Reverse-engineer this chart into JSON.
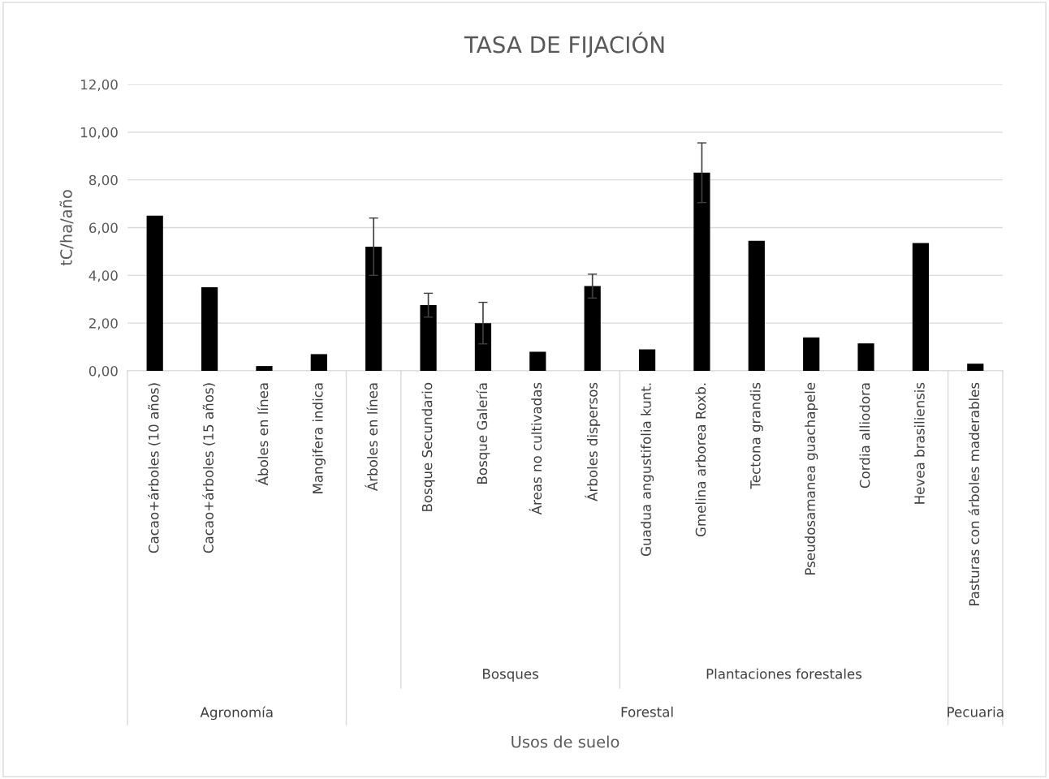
{
  "chart_data": {
    "type": "bar",
    "title": "TASA DE FIJACIÓN",
    "ylabel": "tC/ha/año",
    "categories": [
      "Cacao+árboles (10 años)",
      "Cacao+árboles (15 años)",
      "Áboles en línea",
      "Mangifera indica",
      "Árboles en línea",
      "Bosque Secundario",
      "Bosque Galería",
      "Áreas no cultivadas",
      "Árboles dispersos",
      "Guadua angustifolia kunt.",
      "Gmelina arborea Roxb.",
      "Tectona grandis",
      "Pseudosamanea guachapele",
      "Cordia alliodora",
      "Hevea brasiliensis",
      "Pasturas con árboles maderables"
    ],
    "values": [
      6.5,
      3.5,
      0.2,
      0.7,
      5.2,
      2.75,
      2.0,
      0.8,
      3.55,
      0.9,
      8.3,
      5.45,
      1.4,
      1.15,
      5.35,
      0.3
    ],
    "errors": [
      null,
      null,
      null,
      null,
      1.2,
      0.5,
      0.87,
      null,
      0.5,
      null,
      1.25,
      null,
      null,
      null,
      null,
      null
    ],
    "color": "#000000",
    "ylim": [
      0,
      12
    ],
    "yticks": [
      {
        "value": 0,
        "label": "0,00"
      },
      {
        "value": 2,
        "label": "2,00"
      },
      {
        "value": 4,
        "label": "4,00"
      },
      {
        "value": 6,
        "label": "6,00"
      },
      {
        "value": 8,
        "label": "8,00"
      },
      {
        "value": 10,
        "label": "10,00"
      },
      {
        "value": 12,
        "label": "12,00"
      }
    ],
    "grid": "y",
    "annotations": [
      "Bosques",
      "Plantaciones forestales",
      "Agronomía",
      "Forestal",
      "Pecuaria",
      "Usos de suelo"
    ]
  }
}
